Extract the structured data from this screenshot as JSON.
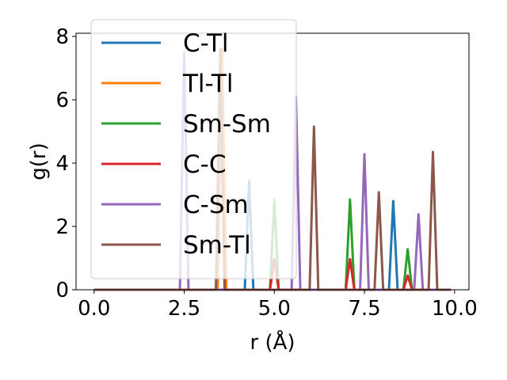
{
  "chart_data": {
    "type": "line",
    "xlabel": "r (Å)",
    "ylabel": "g(r)",
    "xlim": [
      -0.5,
      10.4
    ],
    "ylim": [
      0,
      8.1
    ],
    "xticks": [
      0.0,
      2.5,
      5.0,
      7.5,
      10.0
    ],
    "xtick_labels": [
      "0.0",
      "2.5",
      "5.0",
      "7.5",
      "10.0"
    ],
    "yticks": [
      0,
      2,
      4,
      6,
      8
    ],
    "ytick_labels": [
      "0",
      "2",
      "4",
      "6",
      "8"
    ],
    "grid": false,
    "legend_position": "upper-left",
    "peak_halfwidth": 0.12,
    "x_range": [
      0.0,
      9.9
    ],
    "series": [
      {
        "name": "C-Tl",
        "color": "#1f77b4",
        "peaks": [
          [
            4.3,
            3.45
          ],
          [
            8.3,
            2.8
          ]
        ]
      },
      {
        "name": "Tl-Tl",
        "color": "#ff7f0e",
        "peaks": [
          [
            3.55,
            7.6
          ]
        ]
      },
      {
        "name": "Sm-Sm",
        "color": "#2ca02c",
        "peaks": [
          [
            5.0,
            2.85
          ],
          [
            7.1,
            2.85
          ],
          [
            8.7,
            1.28
          ]
        ]
      },
      {
        "name": "C-C",
        "color": "#d62728",
        "peaks": [
          [
            5.0,
            0.97
          ],
          [
            7.1,
            0.97
          ],
          [
            8.7,
            0.45
          ]
        ]
      },
      {
        "name": "C-Sm",
        "color": "#9467bd",
        "peaks": [
          [
            2.5,
            7.5
          ],
          [
            5.6,
            6.1
          ],
          [
            7.5,
            4.28
          ],
          [
            9.0,
            2.38
          ]
        ]
      },
      {
        "name": "Sm-Tl",
        "color": "#8c564b",
        "peaks": [
          [
            3.5,
            7.6
          ],
          [
            6.1,
            5.15
          ],
          [
            7.9,
            3.08
          ],
          [
            9.4,
            4.35
          ]
        ]
      }
    ]
  }
}
